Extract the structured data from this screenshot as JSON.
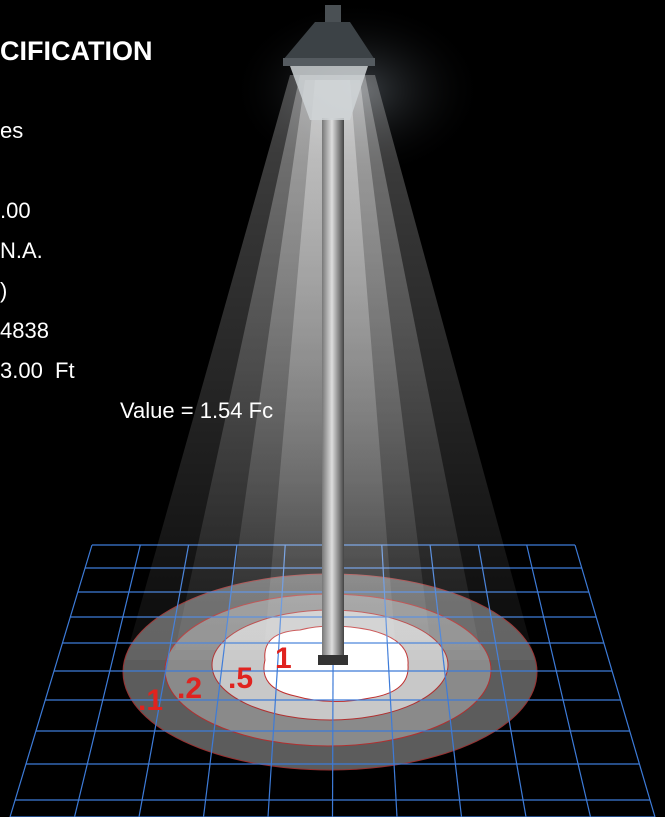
{
  "heading": "CIFICATION",
  "lines": [
    "es",
    ".00",
    "N.A.",
    ")",
    "4838",
    "3.00  Ft",
    "Value = 1.54 Fc"
  ],
  "contour_labels": [
    ".1",
    ".2",
    ".5",
    "1"
  ]
}
